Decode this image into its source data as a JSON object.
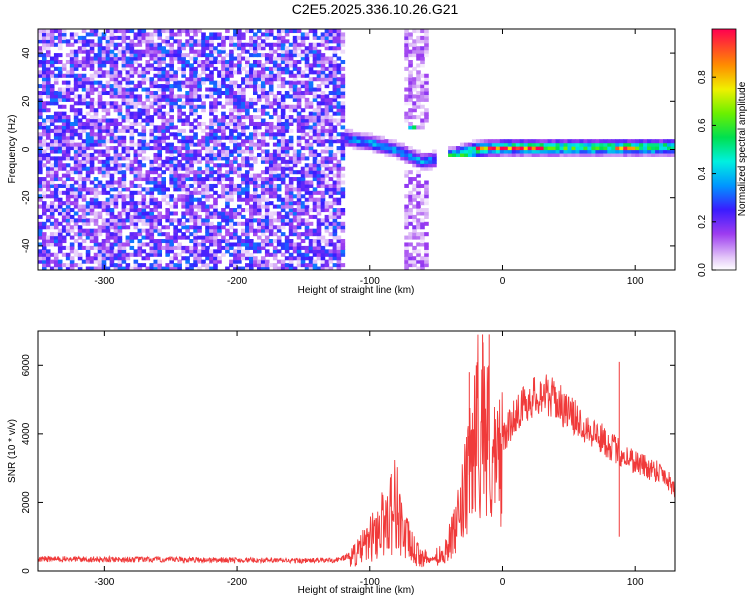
{
  "figure": {
    "title": "C2E5.2025.336.10.26.G21"
  },
  "chart_data": [
    {
      "type": "heatmap",
      "title": "C2E5.2025.336.10.26.G21",
      "xlabel": "Height of straight line (km)",
      "ylabel": "Frequency (Hz)",
      "xlim": [
        -350,
        130
      ],
      "ylim": [
        -50,
        50
      ],
      "xticks": [
        -300,
        -200,
        -100,
        0,
        100
      ],
      "xtick_labels": [
        "-300",
        "-200",
        "-100",
        "0",
        "100"
      ],
      "yticks": [
        -40,
        -20,
        0,
        20,
        40
      ],
      "ytick_labels": [
        "-40",
        "-20",
        "0",
        "20",
        "40"
      ],
      "colorbar": {
        "label": "Normalized spectral amplitude",
        "range": [
          0,
          1
        ],
        "ticks": [
          0.0,
          0.2,
          0.4,
          0.6,
          0.8
        ],
        "tick_labels": [
          "0.0",
          "0.2",
          "0.4",
          "0.6",
          "0.8"
        ]
      },
      "regions": [
        {
          "x_range": [
            -350,
            -120
          ],
          "f_range": [
            -50,
            50
          ],
          "amplitude": 0.15,
          "note": "broadband noise"
        },
        {
          "x_range": [
            -120,
            -50
          ],
          "f_range": [
            -8,
            10
          ],
          "amplitude": 0.35,
          "note": "emerging signal"
        },
        {
          "x_range": [
            -75,
            -55
          ],
          "f_range": [
            -50,
            50
          ],
          "amplitude": 0.08,
          "note": "vertical noise band"
        },
        {
          "x_range": [
            -40,
            130
          ],
          "f_range": [
            -3,
            4
          ],
          "amplitude": 0.55,
          "note": "coherent ridge"
        },
        {
          "x_range": [
            -20,
            30
          ],
          "f_range": [
            0,
            1
          ],
          "amplitude": 0.95,
          "note": "peak"
        },
        {
          "x_range": [
            85,
            100
          ],
          "f_range": [
            0,
            2
          ],
          "amplitude": 0.95,
          "note": "peak"
        }
      ],
      "ridge": {
        "x": [
          -120,
          -100,
          -80,
          -60,
          -40,
          -20,
          0,
          20,
          40,
          60,
          80,
          100,
          130
        ],
        "f": [
          5,
          3,
          0,
          -5,
          -3,
          0,
          1,
          1,
          1,
          1,
          1,
          1,
          1
        ]
      }
    },
    {
      "type": "line",
      "xlabel": "Height of straight line (km)",
      "ylabel": "SNR (10 * v/v)",
      "xlim": [
        -350,
        130
      ],
      "ylim": [
        0,
        7000
      ],
      "xticks": [
        -300,
        -200,
        -100,
        0,
        100
      ],
      "xtick_labels": [
        "-300",
        "-200",
        "-100",
        "0",
        "100"
      ],
      "yticks": [
        0,
        2000,
        4000,
        6000
      ],
      "ytick_labels": [
        "0",
        "2000",
        "4000",
        "6000"
      ],
      "color": "#f03a3a",
      "series": [
        {
          "name": "SNR",
          "x": [
            -350,
            -300,
            -250,
            -200,
            -150,
            -125,
            -110,
            -100,
            -90,
            -80,
            -75,
            -65,
            -55,
            -45,
            -35,
            -25,
            -20,
            -15,
            -10,
            -5,
            0,
            10,
            20,
            30,
            40,
            50,
            60,
            70,
            80,
            90,
            100,
            110,
            120,
            130
          ],
          "y": [
            350,
            340,
            330,
            320,
            300,
            320,
            500,
            900,
            1400,
            2000,
            1100,
            500,
            300,
            500,
            1200,
            2800,
            4200,
            4500,
            3800,
            2800,
            3800,
            4600,
            5000,
            5200,
            5000,
            4600,
            4300,
            4000,
            3700,
            3400,
            3200,
            3000,
            2900,
            2400
          ]
        }
      ],
      "spikes": [
        {
          "x": -25,
          "y": 5800
        },
        {
          "x": -15,
          "y": 6900
        },
        {
          "x": -10,
          "y": 6900
        },
        {
          "x": 88,
          "y": 6100
        },
        {
          "x": 88,
          "y": 1000
        }
      ]
    }
  ]
}
